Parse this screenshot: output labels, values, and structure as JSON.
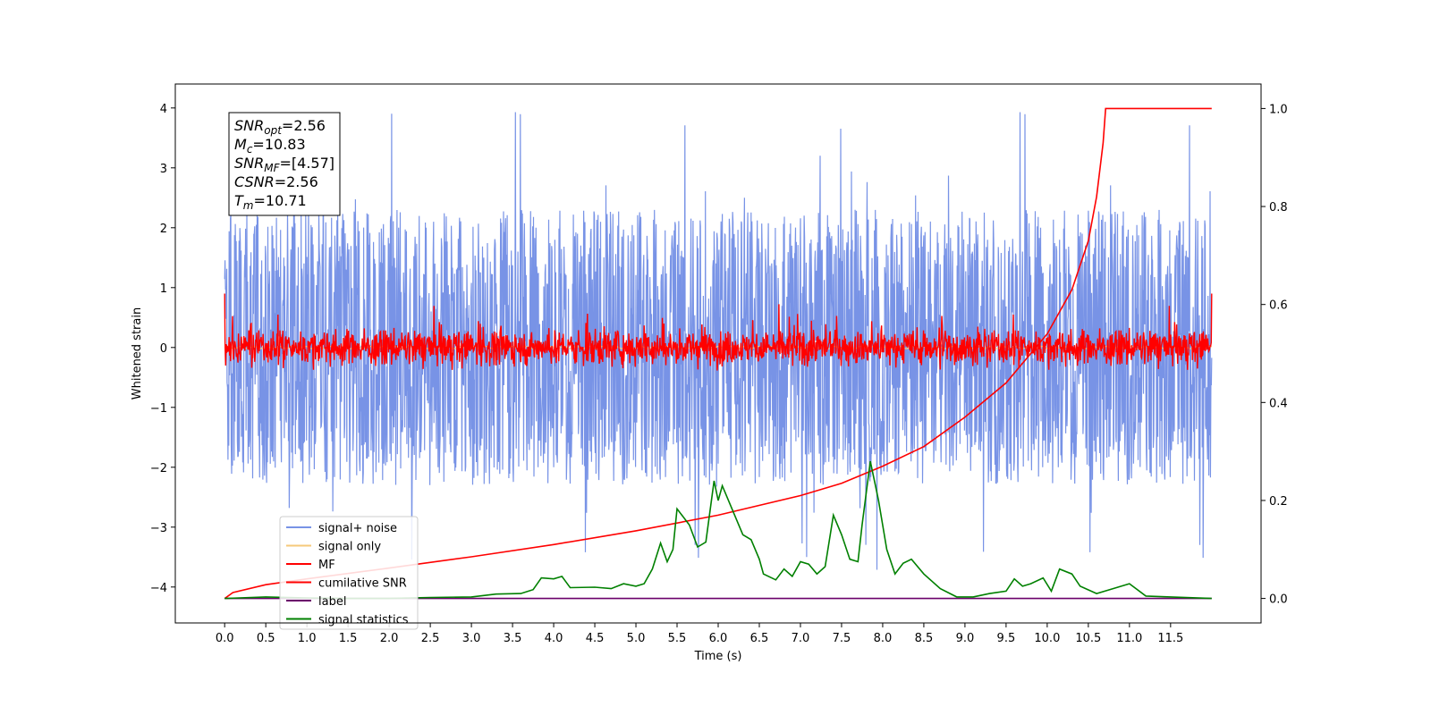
{
  "chart_data": {
    "type": "line",
    "xlabel": "Time (s)",
    "ylabel": "Whitened strain",
    "xlim": [
      -0.6,
      12.6
    ],
    "ylim": [
      -4.6,
      4.4
    ],
    "y2lim": [
      -0.05,
      1.05
    ],
    "x_ticks": [
      "0.0",
      "0.5",
      "1.0",
      "1.5",
      "2.0",
      "2.5",
      "3.0",
      "3.5",
      "4.0",
      "4.5",
      "5.0",
      "5.5",
      "6.0",
      "6.5",
      "7.0",
      "7.5",
      "8.0",
      "8.5",
      "9.0",
      "9.5",
      "10.0",
      "10.5",
      "11.0",
      "11.5"
    ],
    "y_ticks": [
      "4",
      "3",
      "2",
      "1",
      "0",
      "−1",
      "−2",
      "−3",
      "−4"
    ],
    "y2_ticks": [
      "1.0",
      "0.8",
      "0.6",
      "0.4",
      "0.2",
      "0.0"
    ],
    "stats_box": [
      {
        "base": "SNR",
        "sub": "opt",
        "value": "=2.56"
      },
      {
        "base": "M",
        "sub": "c",
        "value": "=10.83"
      },
      {
        "base": "SNR",
        "sub": "MF",
        "value": "=[4.57]"
      },
      {
        "base": "CSNR",
        "sub": "",
        "value": "=2.56"
      },
      {
        "base": "T",
        "sub": "m",
        "value": "=10.71"
      }
    ],
    "legend_position": "lower-left",
    "series": [
      {
        "name": "signal+ noise",
        "color": "#7893e6",
        "axis": "left",
        "x_range": [
          0.0,
          12.0
        ],
        "noise_band": [
          -2.2,
          2.3
        ],
        "peak_range": [
          -4.2,
          4.0
        ]
      },
      {
        "name": "signal only",
        "color": "#f5c97a",
        "axis": "left",
        "x_range": [
          0.0,
          12.0
        ],
        "values": "near zero"
      },
      {
        "name": "MF",
        "color": "#ff0000",
        "axis": "left",
        "x_range": [
          0.0,
          12.0
        ],
        "noise_band": [
          -0.35,
          0.55
        ],
        "start_value": 1.0
      },
      {
        "name": "cumilative SNR",
        "color": "#ff0000",
        "axis": "right",
        "points": [
          [
            0.0,
            0.0
          ],
          [
            0.1,
            0.012
          ],
          [
            0.5,
            0.028
          ],
          [
            1.0,
            0.04
          ],
          [
            2.0,
            0.062
          ],
          [
            3.0,
            0.085
          ],
          [
            4.0,
            0.11
          ],
          [
            5.0,
            0.138
          ],
          [
            6.0,
            0.17
          ],
          [
            7.0,
            0.21
          ],
          [
            7.5,
            0.235
          ],
          [
            8.0,
            0.27
          ],
          [
            8.5,
            0.31
          ],
          [
            9.0,
            0.37
          ],
          [
            9.5,
            0.44
          ],
          [
            10.0,
            0.54
          ],
          [
            10.3,
            0.63
          ],
          [
            10.5,
            0.73
          ],
          [
            10.6,
            0.82
          ],
          [
            10.68,
            0.93
          ],
          [
            10.71,
            1.0
          ],
          [
            12.0,
            1.0
          ]
        ]
      },
      {
        "name": "label",
        "color": "#6a006a",
        "axis": "right",
        "points": [
          [
            0.0,
            0.0
          ],
          [
            12.0,
            0.0
          ]
        ]
      },
      {
        "name": "signal statistics",
        "color": "#008000",
        "axis": "right",
        "points": [
          [
            0.0,
            0.0
          ],
          [
            0.5,
            0.003
          ],
          [
            1.0,
            0.001
          ],
          [
            1.5,
            0.0
          ],
          [
            2.0,
            0.0
          ],
          [
            2.5,
            0.002
          ],
          [
            3.0,
            0.003
          ],
          [
            3.3,
            0.009
          ],
          [
            3.6,
            0.01
          ],
          [
            3.75,
            0.018
          ],
          [
            3.85,
            0.042
          ],
          [
            4.0,
            0.04
          ],
          [
            4.1,
            0.045
          ],
          [
            4.2,
            0.022
          ],
          [
            4.5,
            0.023
          ],
          [
            4.7,
            0.02
          ],
          [
            4.85,
            0.03
          ],
          [
            5.0,
            0.025
          ],
          [
            5.1,
            0.03
          ],
          [
            5.2,
            0.06
          ],
          [
            5.3,
            0.113
          ],
          [
            5.38,
            0.075
          ],
          [
            5.45,
            0.1
          ],
          [
            5.5,
            0.183
          ],
          [
            5.65,
            0.15
          ],
          [
            5.75,
            0.105
          ],
          [
            5.85,
            0.115
          ],
          [
            5.95,
            0.24
          ],
          [
            6.0,
            0.2
          ],
          [
            6.05,
            0.23
          ],
          [
            6.15,
            0.19
          ],
          [
            6.3,
            0.13
          ],
          [
            6.4,
            0.12
          ],
          [
            6.5,
            0.08
          ],
          [
            6.55,
            0.05
          ],
          [
            6.7,
            0.038
          ],
          [
            6.8,
            0.06
          ],
          [
            6.9,
            0.045
          ],
          [
            7.0,
            0.075
          ],
          [
            7.1,
            0.07
          ],
          [
            7.2,
            0.05
          ],
          [
            7.3,
            0.065
          ],
          [
            7.4,
            0.17
          ],
          [
            7.5,
            0.13
          ],
          [
            7.6,
            0.08
          ],
          [
            7.7,
            0.075
          ],
          [
            7.75,
            0.15
          ],
          [
            7.85,
            0.28
          ],
          [
            7.95,
            0.2
          ],
          [
            8.05,
            0.1
          ],
          [
            8.15,
            0.05
          ],
          [
            8.25,
            0.072
          ],
          [
            8.35,
            0.08
          ],
          [
            8.5,
            0.05
          ],
          [
            8.7,
            0.02
          ],
          [
            8.9,
            0.003
          ],
          [
            9.1,
            0.003
          ],
          [
            9.3,
            0.01
          ],
          [
            9.5,
            0.015
          ],
          [
            9.6,
            0.04
          ],
          [
            9.7,
            0.025
          ],
          [
            9.8,
            0.03
          ],
          [
            9.95,
            0.042
          ],
          [
            10.05,
            0.015
          ],
          [
            10.15,
            0.06
          ],
          [
            10.3,
            0.05
          ],
          [
            10.4,
            0.025
          ],
          [
            10.6,
            0.01
          ],
          [
            10.8,
            0.02
          ],
          [
            11.0,
            0.03
          ],
          [
            11.2,
            0.005
          ],
          [
            11.5,
            0.003
          ],
          [
            12.0,
            0.0
          ]
        ]
      }
    ]
  }
}
